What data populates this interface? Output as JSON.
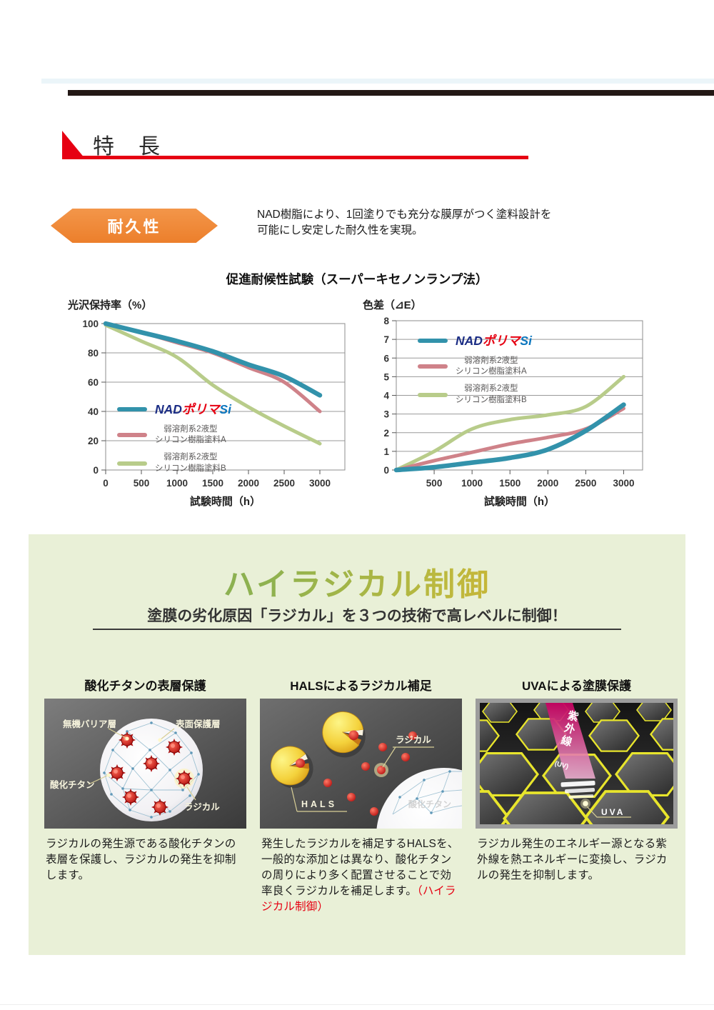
{
  "header": {
    "title": "特　長"
  },
  "durability": {
    "badge_label": "耐久性",
    "description": "NAD樹脂により、1回塗りでも充分な膜厚がつく塗料設計を\n可能にし安定した耐久性を実現。"
  },
  "charts": {
    "section_title": "促進耐候性試験（スーパーキセノンランプ法）"
  },
  "brand": {
    "nad": "NAD",
    "polyma": "ポリマ",
    "si": "Si"
  },
  "colors": {
    "red": "#e60012",
    "orange": "#ee8637",
    "dark_bar": "#231815",
    "teal": "#3292ab",
    "pink": "#cf8289",
    "green": "#b8cc8a",
    "section_bg": "#e9f0d7"
  },
  "chart_data": [
    {
      "type": "line",
      "title": "光沢保持率（%）",
      "xlabel": "試験時間（h）",
      "x": [
        0,
        500,
        1000,
        1500,
        2000,
        2500,
        3000
      ],
      "xticks": [
        0,
        500,
        1000,
        1500,
        2000,
        2500,
        3000
      ],
      "ylim": [
        0,
        100
      ],
      "yticks": [
        0,
        20,
        40,
        60,
        80,
        100
      ],
      "series": [
        {
          "name": "NADポリマSi",
          "logo": true,
          "color": "#3292ab",
          "values": [
            100,
            94,
            88,
            81,
            72,
            64,
            51
          ]
        },
        {
          "name": "弱溶剤系2液型シリコン樹脂塗料A",
          "name_lines": [
            "弱溶剤系2液型",
            "シリコン樹脂塗料A"
          ],
          "color": "#cf8289",
          "values": [
            100,
            94,
            87,
            80,
            70,
            60,
            40
          ]
        },
        {
          "name": "弱溶剤系2液型シリコン樹脂塗料B",
          "name_lines": [
            "弱溶剤系2液型",
            "シリコン樹脂塗料B"
          ],
          "color": "#b8cc8a",
          "values": [
            99,
            88,
            77,
            58,
            43,
            30,
            18
          ]
        }
      ]
    },
    {
      "type": "line",
      "title": "色差（⊿E）",
      "xlabel": "試験時間（h）",
      "x": [
        0,
        500,
        1000,
        1500,
        2000,
        2500,
        3000
      ],
      "xticks": [
        500,
        1000,
        1500,
        2000,
        2500,
        3000
      ],
      "ylim": [
        0,
        8
      ],
      "yticks": [
        0,
        1,
        2,
        3,
        4,
        5,
        6,
        7,
        8
      ],
      "series": [
        {
          "name": "NADポリマSi",
          "logo": true,
          "color": "#3292ab",
          "values": [
            0,
            0.15,
            0.4,
            0.65,
            1.1,
            2.1,
            3.5
          ]
        },
        {
          "name": "弱溶剤系2液型シリコン樹脂塗料A",
          "name_lines": [
            "弱溶剤系2液型",
            "シリコン樹脂塗料A"
          ],
          "color": "#cf8289",
          "values": [
            0,
            0.5,
            0.95,
            1.4,
            1.75,
            2.2,
            3.3
          ]
        },
        {
          "name": "弱溶剤系2液型シリコン樹脂塗料B",
          "name_lines": [
            "弱溶剤系2液型",
            "シリコン樹脂塗料B"
          ],
          "color": "#b8cc8a",
          "values": [
            0,
            1.0,
            2.2,
            2.7,
            2.95,
            3.4,
            5.0
          ]
        }
      ]
    }
  ],
  "radical": {
    "title": "ハイラジカル制御",
    "subtitle": "塗膜の劣化原因「ラジカル」を３つの技術で高レベルに制御！",
    "panels": [
      {
        "title": "酸化チタンの表層保護",
        "labels": [
          "無機バリア層",
          "表面保護層",
          "酸化チタン",
          "ラジカル"
        ],
        "desc": "ラジカルの発生源である酸化チタンの表層を保護し、ラジカルの発生を抑制します。"
      },
      {
        "title": "HALSによるラジカル補足",
        "labels": [
          "ラジカル",
          "HALS",
          "酸化チタン"
        ],
        "desc": "発生したラジカルを補足するHALSを、一般的な添加とは異なり、酸化チタンの周りにより多く配置させることで効率良くラジカルを補足します。",
        "desc_red": "（ハイラジカル制御）"
      },
      {
        "title": "UVAによる塗膜保護",
        "labels": [
          "紫外線",
          "(UV)",
          "UVA"
        ],
        "desc": "ラジカル発生のエネルギー源となる紫外線を熱エネルギーに変換し、ラジカルの発生を抑制します。"
      }
    ]
  }
}
